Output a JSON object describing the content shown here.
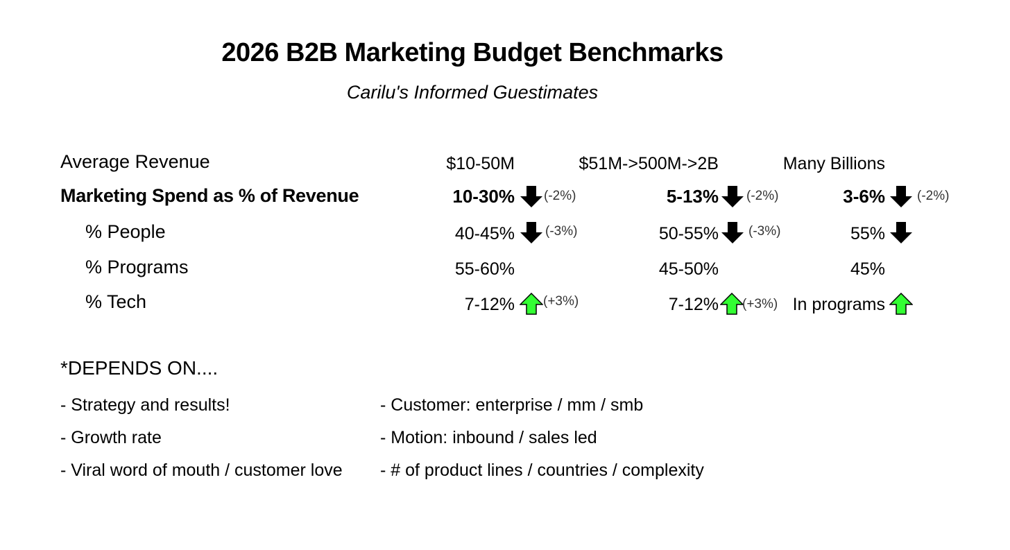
{
  "title": "2026 B2B Marketing Budget Benchmarks",
  "subtitle": "Carilu's Informed Guestimates",
  "rows": [
    {
      "label": "Average Revenue",
      "values": [
        "$10-50M",
        "$51M->500M->2B",
        "Many Billions"
      ]
    },
    {
      "label": "Marketing Spend as % of Revenue",
      "values": [
        "10-30%",
        "5-13%",
        "3-6%"
      ],
      "changes": [
        "(-2%)",
        "(-2%)",
        "(-2%)"
      ],
      "trend": "down"
    },
    {
      "label": "% People",
      "values": [
        "40-45%",
        "50-55%",
        "55%"
      ],
      "changes": [
        "(-3%)",
        "(-3%)",
        ""
      ],
      "trend": "down"
    },
    {
      "label": "% Programs",
      "values": [
        "55-60%",
        "45-50%",
        "45%"
      ]
    },
    {
      "label": "% Tech",
      "values": [
        "7-12%",
        "7-12%",
        "In programs"
      ],
      "changes": [
        "(+3%)",
        "(+3%)",
        ""
      ],
      "trend": "up"
    }
  ],
  "depends": {
    "heading": "*DEPENDS ON....",
    "left": [
      "- Strategy and results!",
      "- Growth rate",
      "- Viral word of mouth / customer love"
    ],
    "right": [
      "- Customer: enterprise / mm / smb",
      "- Motion: inbound / sales led",
      "- # of product lines / countries / complexity"
    ]
  },
  "colors": {
    "up_arrow": "#33ff33",
    "down_arrow": "#000000"
  },
  "icons": {
    "up": "arrow-up-icon",
    "down": "arrow-down-icon"
  }
}
